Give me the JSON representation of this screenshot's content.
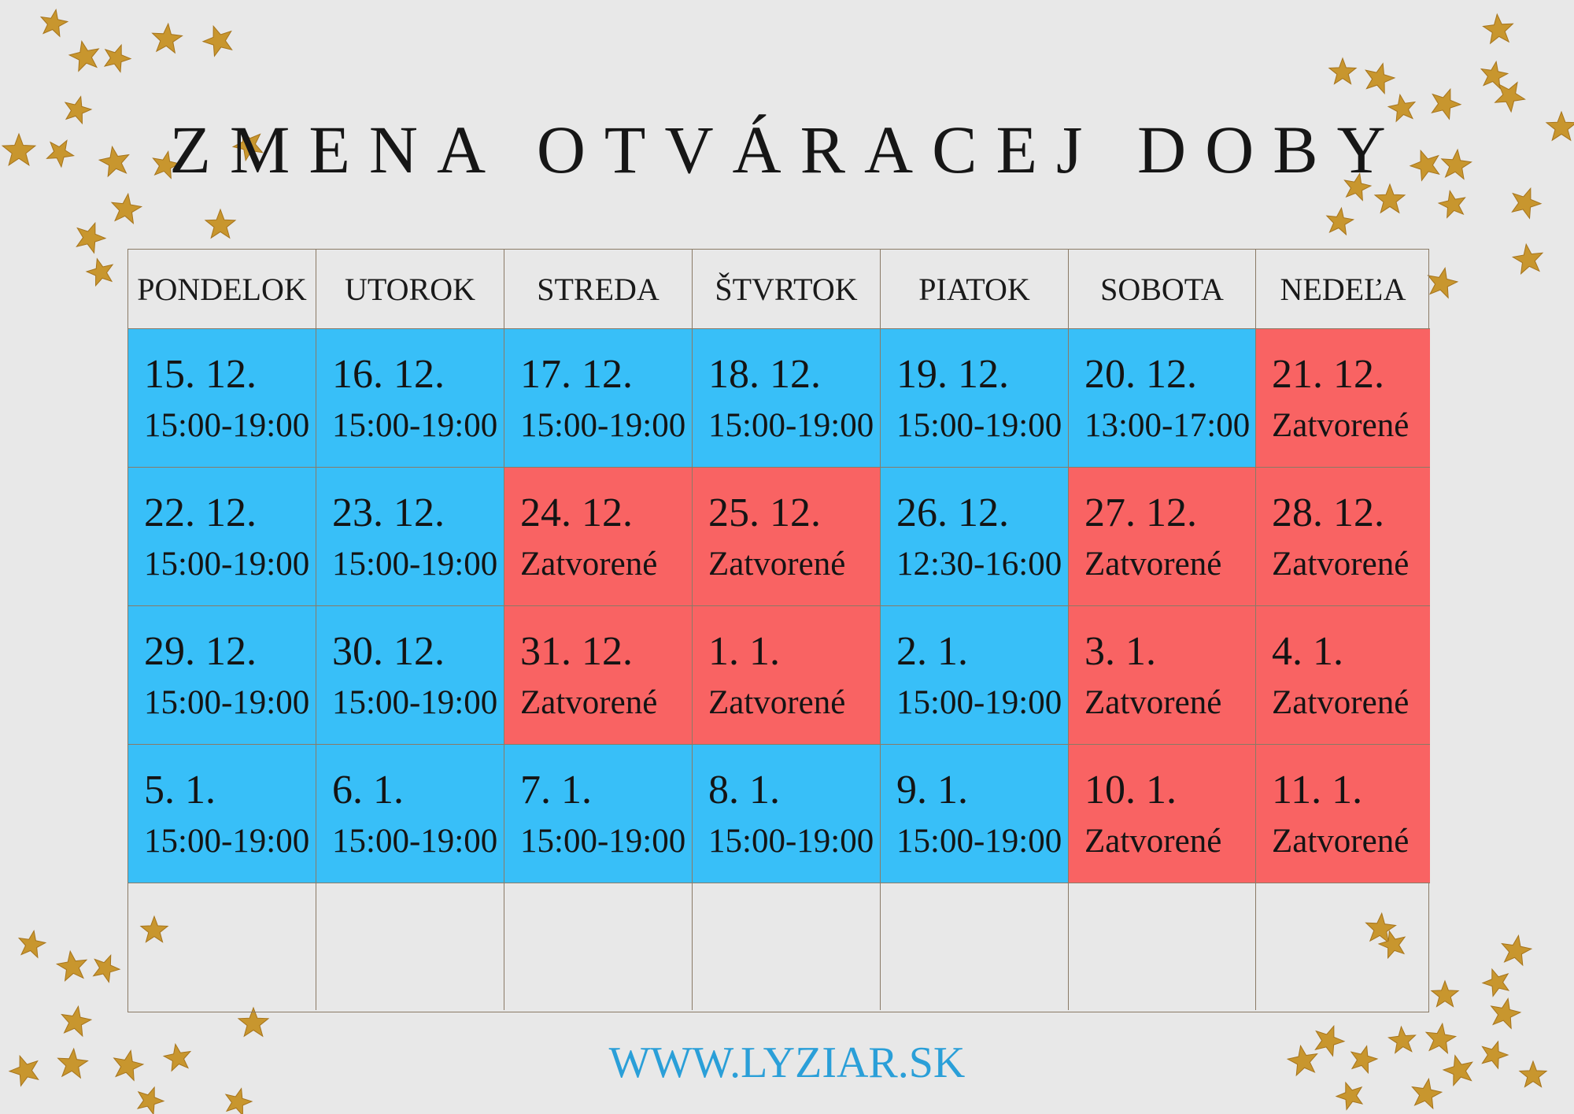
{
  "title": "ZMENA OTVÁRACEJ DOBY",
  "footer": "WWW.LYZIAR.SK",
  "colors": {
    "background": "#e8e8e8",
    "open": "#38bff8",
    "closed": "#f96363",
    "footer_text": "#2a9fd8",
    "star": "#c8962e"
  },
  "days": [
    "PONDELOK",
    "UTOROK",
    "STREDA",
    "ŠTVRTOK",
    "PIATOK",
    "SOBOTA",
    "NEDEĽA"
  ],
  "weeks": [
    [
      {
        "date": "15. 12.",
        "hours": "15:00-19:00",
        "status": "open"
      },
      {
        "date": "16. 12.",
        "hours": "15:00-19:00",
        "status": "open"
      },
      {
        "date": "17. 12.",
        "hours": "15:00-19:00",
        "status": "open"
      },
      {
        "date": "18. 12.",
        "hours": "15:00-19:00",
        "status": "open"
      },
      {
        "date": "19. 12.",
        "hours": "15:00-19:00",
        "status": "open"
      },
      {
        "date": "20. 12.",
        "hours": "13:00-17:00",
        "status": "open"
      },
      {
        "date": "21. 12.",
        "hours": "Zatvorené",
        "status": "closed"
      }
    ],
    [
      {
        "date": "22. 12.",
        "hours": "15:00-19:00",
        "status": "open"
      },
      {
        "date": "23. 12.",
        "hours": "15:00-19:00",
        "status": "open"
      },
      {
        "date": "24. 12.",
        "hours": "Zatvorené",
        "status": "closed"
      },
      {
        "date": "25. 12.",
        "hours": "Zatvorené",
        "status": "closed"
      },
      {
        "date": "26. 12.",
        "hours": "12:30-16:00",
        "status": "open"
      },
      {
        "date": "27. 12.",
        "hours": "Zatvorené",
        "status": "closed"
      },
      {
        "date": "28. 12.",
        "hours": "Zatvorené",
        "status": "closed"
      }
    ],
    [
      {
        "date": "29. 12.",
        "hours": "15:00-19:00",
        "status": "open"
      },
      {
        "date": "30. 12.",
        "hours": "15:00-19:00",
        "status": "open"
      },
      {
        "date": "31. 12.",
        "hours": "Zatvorené",
        "status": "closed"
      },
      {
        "date": "1. 1.",
        "hours": "Zatvorené",
        "status": "closed"
      },
      {
        "date": "2. 1.",
        "hours": "15:00-19:00",
        "status": "open"
      },
      {
        "date": "3. 1.",
        "hours": "Zatvorené",
        "status": "closed"
      },
      {
        "date": "4. 1.",
        "hours": "Zatvorené",
        "status": "closed"
      }
    ],
    [
      {
        "date": "5. 1.",
        "hours": "15:00-19:00",
        "status": "open"
      },
      {
        "date": "6. 1.",
        "hours": "15:00-19:00",
        "status": "open"
      },
      {
        "date": "7. 1.",
        "hours": "15:00-19:00",
        "status": "open"
      },
      {
        "date": "8. 1.",
        "hours": "15:00-19:00",
        "status": "open"
      },
      {
        "date": "9. 1.",
        "hours": "15:00-19:00",
        "status": "open"
      },
      {
        "date": "10. 1.",
        "hours": "Zatvorené",
        "status": "closed"
      },
      {
        "date": "11. 1.",
        "hours": "Zatvorené",
        "status": "closed"
      }
    ]
  ],
  "decoration": {
    "icon": "gold-star-icon"
  }
}
